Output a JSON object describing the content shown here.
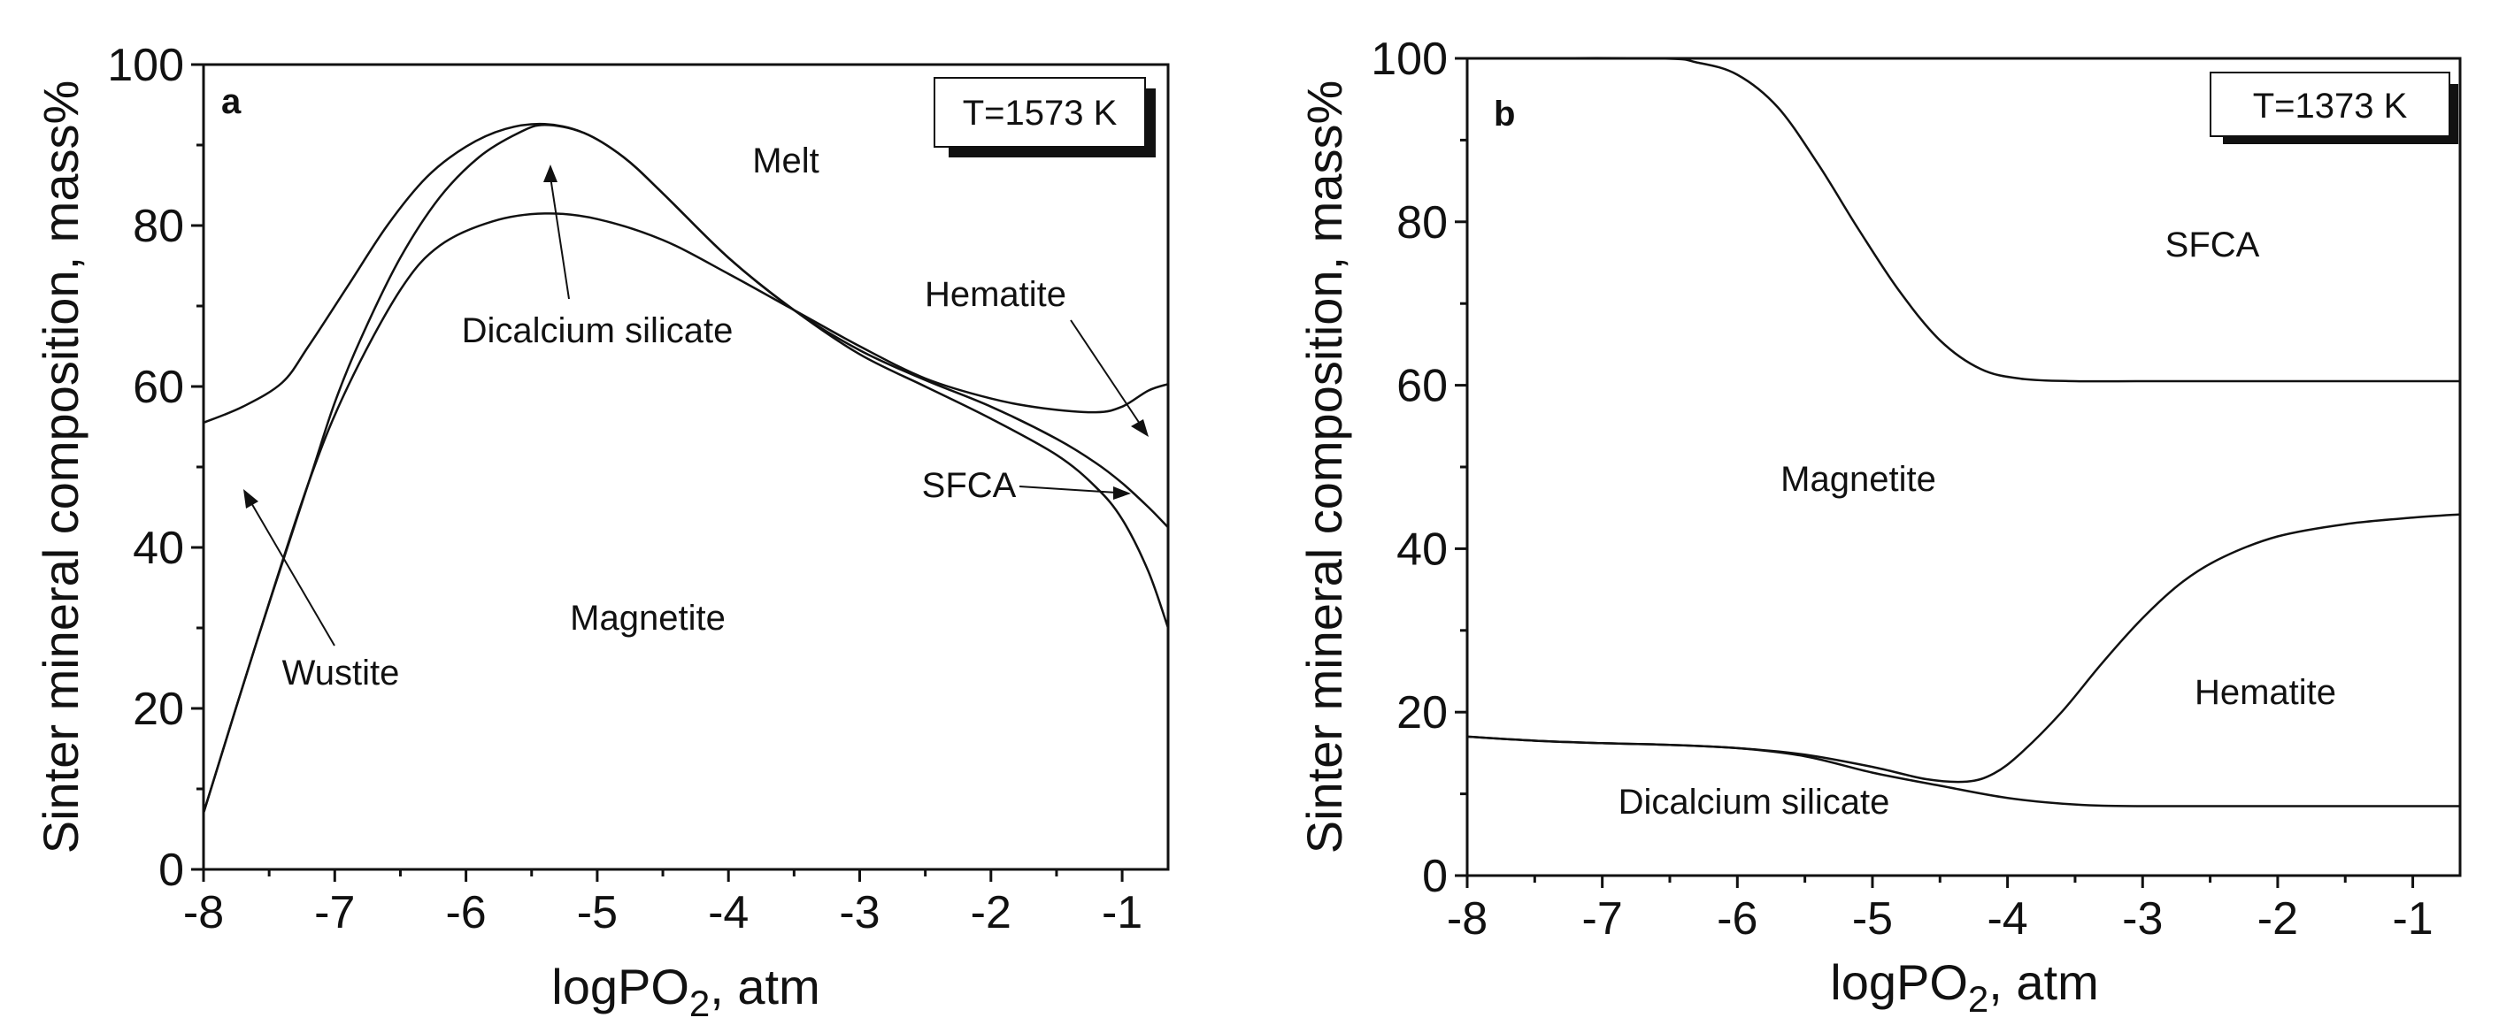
{
  "chart_data": [
    {
      "panel": "a",
      "type": "area",
      "temperature_label": "T=1573 K",
      "xlabel": "logPO",
      "xlabel_sub": "2",
      "xlabel_tail": ", atm",
      "ylabel": "Sinter mineral composition, mass%",
      "xlim": [
        -8,
        -0.65
      ],
      "ylim": [
        0,
        100
      ],
      "xticks": [
        -8,
        -7,
        -6,
        -5,
        -4,
        -3,
        -2,
        -1
      ],
      "yticks": [
        0,
        20,
        40,
        60,
        80,
        100
      ],
      "regions": {
        "melt": "Melt",
        "hematite": "Hematite",
        "dicalcium": "Dicalcium silicate",
        "sfca": "SFCA",
        "wustite": "Wustite",
        "magnetite": "Magnetite"
      },
      "series": [
        {
          "name": "Wustite/Magnetite boundary",
          "points": [
            [
              -8,
              7
            ],
            [
              -7.6,
              28
            ],
            [
              -7.2,
              48
            ],
            [
              -6.9,
              60
            ],
            [
              -6.5,
              72
            ],
            [
              -6.2,
              77.5
            ],
            [
              -5.8,
              80.5
            ],
            [
              -5.4,
              81.5
            ],
            [
              -5,
              80.8
            ],
            [
              -4.5,
              78.2
            ],
            [
              -4,
              74
            ],
            [
              -3.5,
              69.5
            ],
            [
              -3,
              65
            ],
            [
              -2.5,
              61
            ],
            [
              -2,
              58.5
            ],
            [
              -1.6,
              57.3
            ],
            [
              -1.2,
              56.8
            ],
            [
              -1,
              57.5
            ],
            [
              -0.8,
              59.5
            ],
            [
              -0.65,
              60.3
            ]
          ]
        },
        {
          "name": "Melt lower boundary",
          "points": [
            [
              -8,
              55.5
            ],
            [
              -7.7,
              57.5
            ],
            [
              -7.4,
              60.5
            ],
            [
              -7.2,
              65
            ],
            [
              -6.9,
              72.5
            ],
            [
              -6.6,
              80
            ],
            [
              -6.3,
              86
            ],
            [
              -6,
              89.8
            ],
            [
              -5.7,
              92
            ],
            [
              -5.4,
              92.6
            ],
            [
              -5.1,
              91.5
            ],
            [
              -4.8,
              88.5
            ],
            [
              -4.5,
              84
            ],
            [
              -4,
              76
            ],
            [
              -3.5,
              69.5
            ],
            [
              -3,
              64.5
            ],
            [
              -2.5,
              60.8
            ],
            [
              -2,
              57.5
            ],
            [
              -1.5,
              53.5
            ],
            [
              -1.2,
              50.5
            ],
            [
              -1,
              48
            ],
            [
              -0.8,
              45
            ],
            [
              -0.65,
              42.5
            ]
          ]
        },
        {
          "name": "SFCA lower boundary",
          "points": [
            [
              -8,
              7
            ],
            [
              -7.6,
              28
            ],
            [
              -7.2,
              48
            ],
            [
              -7,
              58
            ],
            [
              -6.8,
              66
            ],
            [
              -6.5,
              76
            ],
            [
              -6.2,
              83.5
            ],
            [
              -5.9,
              88.5
            ],
            [
              -5.6,
              91.5
            ],
            [
              -5.4,
              92.5
            ],
            [
              -5.1,
              91.5
            ],
            [
              -4.8,
              88.5
            ],
            [
              -4.5,
              84
            ],
            [
              -4,
              76
            ],
            [
              -3.5,
              69.5
            ],
            [
              -3,
              64
            ],
            [
              -2.5,
              60
            ],
            [
              -2,
              56
            ],
            [
              -1.5,
              51.5
            ],
            [
              -1.2,
              47.5
            ],
            [
              -1,
              43.5
            ],
            [
              -0.8,
              37
            ],
            [
              -0.65,
              30
            ]
          ]
        }
      ]
    },
    {
      "panel": "b",
      "type": "area",
      "temperature_label": "T=1373 K",
      "xlabel": "logPO",
      "xlabel_sub": "2",
      "xlabel_tail": ", atm",
      "ylabel": "Sinter mineral composition, mass%",
      "xlim": [
        -8,
        -0.65
      ],
      "ylim": [
        0,
        100
      ],
      "xticks": [
        -8,
        -7,
        -6,
        -5,
        -4,
        -3,
        -2,
        -1
      ],
      "yticks": [
        0,
        20,
        40,
        60,
        80,
        100
      ],
      "regions": {
        "sfca": "SFCA",
        "magnetite": "Magnetite",
        "hematite": "Hematite",
        "dicalcium": "Dicalcium silicate"
      },
      "series": [
        {
          "name": "SFCA/Magnetite boundary",
          "points": [
            [
              -8,
              100
            ],
            [
              -6.6,
              100
            ],
            [
              -6.3,
              99.5
            ],
            [
              -6,
              98
            ],
            [
              -5.7,
              94
            ],
            [
              -5.4,
              87
            ],
            [
              -5.1,
              79
            ],
            [
              -4.8,
              71.5
            ],
            [
              -4.5,
              65.5
            ],
            [
              -4.2,
              62
            ],
            [
              -3.9,
              60.8
            ],
            [
              -3.5,
              60.5
            ],
            [
              -3,
              60.5
            ],
            [
              -2,
              60.5
            ],
            [
              -0.65,
              60.5
            ]
          ]
        },
        {
          "name": "Magnetite/Hematite boundary",
          "points": [
            [
              -8,
              17
            ],
            [
              -7.5,
              16.5
            ],
            [
              -7,
              16.2
            ],
            [
              -6.5,
              16
            ],
            [
              -6,
              15.6
            ],
            [
              -5.5,
              14.8
            ],
            [
              -5,
              13.3
            ],
            [
              -4.6,
              11.8
            ],
            [
              -4.3,
              11.5
            ],
            [
              -4.1,
              12.5
            ],
            [
              -3.9,
              15
            ],
            [
              -3.6,
              20
            ],
            [
              -3.3,
              26
            ],
            [
              -3,
              31.5
            ],
            [
              -2.7,
              36
            ],
            [
              -2.4,
              39
            ],
            [
              -2,
              41.5
            ],
            [
              -1.5,
              43
            ],
            [
              -1,
              43.8
            ],
            [
              -0.65,
              44.2
            ]
          ]
        },
        {
          "name": "Dicalcium silicate boundary",
          "points": [
            [
              -8,
              17
            ],
            [
              -7.5,
              16.5
            ],
            [
              -7,
              16.2
            ],
            [
              -6.5,
              16
            ],
            [
              -6,
              15.6
            ],
            [
              -5.5,
              14.6
            ],
            [
              -5,
              12.6
            ],
            [
              -4.5,
              11
            ],
            [
              -4,
              9.5
            ],
            [
              -3.5,
              8.7
            ],
            [
              -3,
              8.5
            ],
            [
              -2,
              8.5
            ],
            [
              -0.65,
              8.5
            ]
          ]
        }
      ]
    }
  ]
}
